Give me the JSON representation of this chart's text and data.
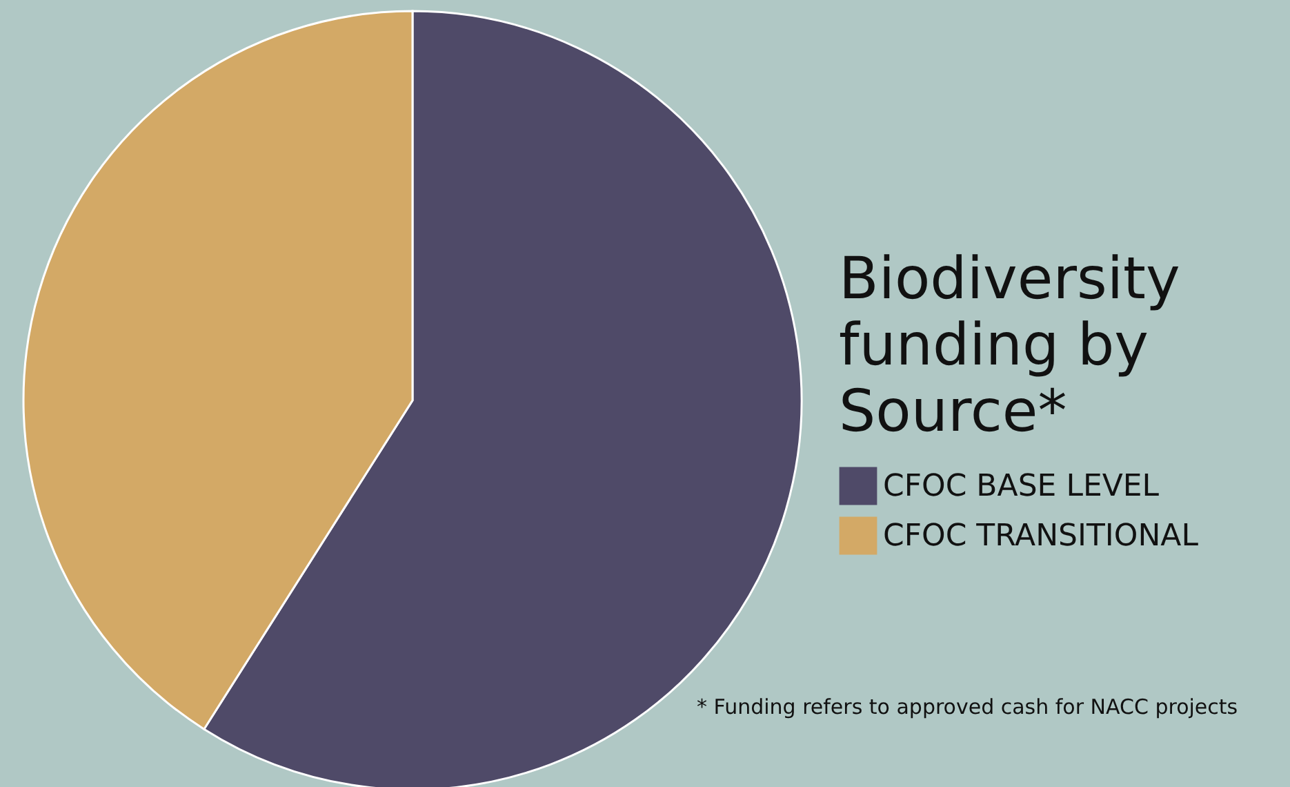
{
  "chart_data": {
    "type": "pie",
    "title": "Biodiversity funding by Source*",
    "categories": [
      "CFOC BASE LEVEL",
      "CFOC TRANSITIONAL"
    ],
    "values": [
      59,
      41
    ],
    "colors": [
      "#4f4a68",
      "#d3a966"
    ],
    "legend": "right",
    "annotations": [
      "* Funding refers to approved cash for NACC projects"
    ]
  }
}
